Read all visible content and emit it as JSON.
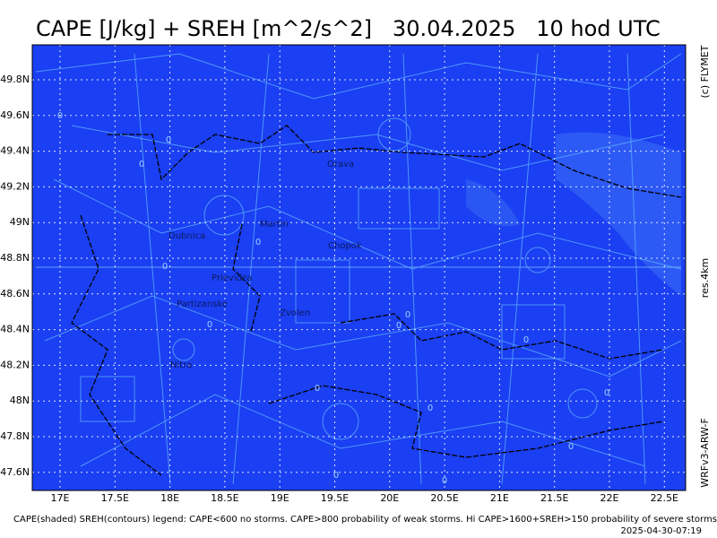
{
  "header": {
    "title": "CAPE [J/kg] + SREH [m^2/s^2]   30.04.2025   10 hod UTC"
  },
  "side": {
    "copyright": "(c) FLYMET",
    "resolution": "res.4km",
    "model": "WRFv3-ARW-F"
  },
  "lat_labels": [
    "49.8N",
    "49.6N",
    "49.4N",
    "49.2N",
    "49N",
    "48.8N",
    "48.6N",
    "48.4N",
    "48.2N",
    "48N",
    "47.8N",
    "47.6N"
  ],
  "lon_labels": [
    "17E",
    "17.5E",
    "18E",
    "18.5E",
    "19E",
    "19.5E",
    "20E",
    "20.5E",
    "21E",
    "21.5E",
    "22E",
    "22.5E"
  ],
  "cities": [
    "Orava",
    "Martin",
    "Dubnica",
    "Chopok",
    "Prievidza",
    "Partizanske",
    "Zvolen",
    "Nitra"
  ],
  "contour_labels": [
    "0",
    "0",
    "0",
    "0",
    "0",
    "0",
    "0",
    "0",
    "0",
    "0",
    "0",
    "0",
    "0",
    "0",
    "0"
  ],
  "legend": "CAPE(shaded) SREH(contours) legend: CAPE<600 no storms. CAPE>800 probability of weak storms. Hi CAPE>1600+SREH>150 probability of severe storms.",
  "timestamp": "2025-04-30-07:19"
}
